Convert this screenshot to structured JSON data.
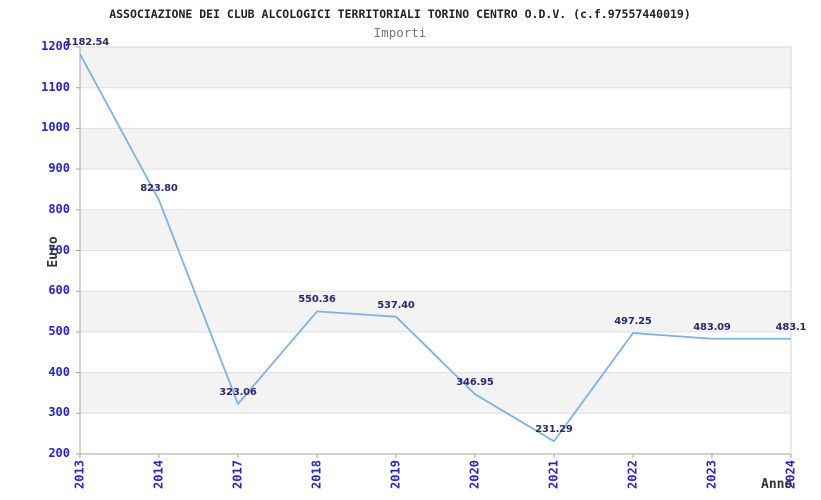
{
  "chart_data": {
    "type": "line",
    "title": "ASSOCIAZIONE DEI CLUB ALCOLOGICI TERRITORIALI TORINO CENTRO O.D.V. (c.f.97557440019)",
    "subtitle": "Importi",
    "xlabel": "Anno",
    "ylabel": "Euro",
    "categories": [
      "2013",
      "2014",
      "2017",
      "2018",
      "2019",
      "2020",
      "2021",
      "2022",
      "2023",
      "2024"
    ],
    "values": [
      1182.54,
      823.8,
      323.06,
      550.36,
      537.4,
      346.95,
      231.29,
      497.25,
      483.09,
      483.1
    ],
    "point_labels": [
      "1182.54",
      "823.80",
      "323.06",
      "550.36",
      "537.40",
      "346.95",
      "231.29",
      "497.25",
      "483.09",
      "483.1"
    ],
    "ylim": [
      200,
      1200
    ],
    "ytick_step": 100,
    "grid": true,
    "alternating_bands": true,
    "legend_position": "none",
    "colors": {
      "line": "#7db2e9",
      "tick_label": "#2525cf",
      "point_label": "#2a2a70",
      "band_gray": "#f3f3f3",
      "gridline": "#e0e0e0",
      "axis_dark": "#a6a6a6",
      "axis_light": "#d6d6d6",
      "title": "#222222",
      "subtitle": "#757575"
    }
  }
}
